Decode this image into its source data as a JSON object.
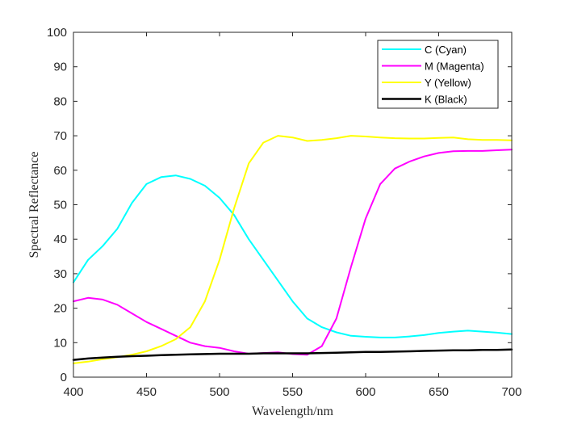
{
  "chart_data": {
    "type": "line",
    "title": "",
    "xlabel": "Wavelength/nm",
    "ylabel": "Spectral Reflectance",
    "xlim": [
      400,
      700
    ],
    "ylim": [
      0,
      100
    ],
    "xticks": [
      400,
      450,
      500,
      550,
      600,
      650,
      700
    ],
    "yticks": [
      0,
      10,
      20,
      30,
      40,
      50,
      60,
      70,
      80,
      90,
      100
    ],
    "grid": false,
    "legend_position": "top-right",
    "x": [
      400,
      410,
      420,
      430,
      440,
      450,
      460,
      470,
      480,
      490,
      500,
      510,
      520,
      530,
      540,
      550,
      560,
      570,
      580,
      590,
      600,
      610,
      620,
      630,
      640,
      650,
      660,
      670,
      680,
      690,
      700
    ],
    "series": [
      {
        "name": "C (Cyan)",
        "color": "#00ffff",
        "values": [
          27.5,
          34,
          38,
          43,
          50.5,
          56,
          58,
          58.5,
          57.5,
          55.5,
          52,
          47,
          40,
          34,
          28,
          22,
          17,
          14.5,
          13,
          12,
          11.7,
          11.5,
          11.5,
          11.8,
          12.2,
          12.8,
          13.2,
          13.5,
          13.2,
          12.9,
          12.5
        ]
      },
      {
        "name": "M (Magenta)",
        "color": "#ff00ff",
        "values": [
          22,
          23,
          22.5,
          21,
          18.5,
          16,
          14,
          12,
          10,
          9,
          8.5,
          7.5,
          6.8,
          7,
          7.2,
          6.7,
          6.5,
          9,
          17,
          32,
          46,
          56,
          60.5,
          62.5,
          64,
          65,
          65.5,
          65.6,
          65.6,
          65.8,
          66
        ]
      },
      {
        "name": "Y (Yellow)",
        "color": "#ffff00",
        "values": [
          4,
          4.5,
          5.2,
          5.8,
          6.5,
          7.5,
          9,
          11,
          14.5,
          22,
          34,
          49,
          62,
          68,
          70,
          69.5,
          68.5,
          68.8,
          69.3,
          70,
          69.8,
          69.5,
          69.3,
          69.2,
          69.2,
          69.4,
          69.5,
          69,
          68.8,
          68.8,
          68.7
        ]
      },
      {
        "name": "K (Black)",
        "color": "#000000",
        "values": [
          5,
          5.4,
          5.7,
          5.9,
          6.1,
          6.2,
          6.4,
          6.5,
          6.6,
          6.7,
          6.8,
          6.8,
          6.8,
          6.9,
          6.9,
          6.9,
          6.9,
          7,
          7.1,
          7.2,
          7.3,
          7.3,
          7.4,
          7.5,
          7.6,
          7.7,
          7.8,
          7.8,
          7.9,
          7.9,
          8
        ]
      }
    ]
  }
}
